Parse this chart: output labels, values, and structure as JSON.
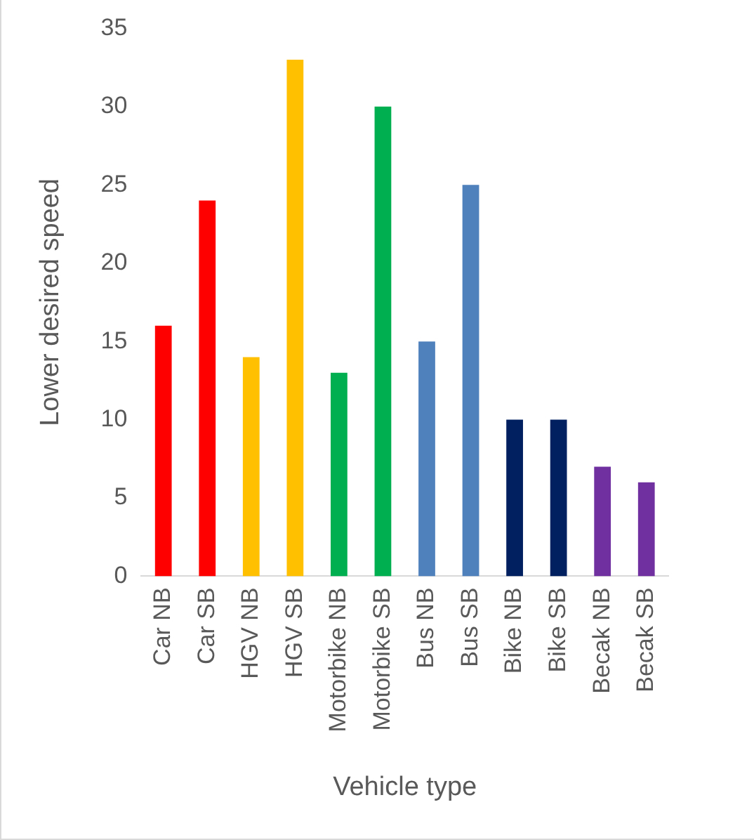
{
  "chart_data": {
    "type": "bar",
    "xlabel": "Vehicle type",
    "ylabel": "Lower desired speed",
    "categories": [
      "Car NB",
      "Car SB",
      "HGV NB",
      "HGV SB",
      "Motorbike NB",
      "Motorbike SB",
      "Bus NB",
      "Bus SB",
      "Bike NB",
      "Bike SB",
      "Becak NB",
      "Becak SB"
    ],
    "values": [
      16,
      24,
      14,
      33,
      13,
      30,
      15,
      25,
      10,
      10,
      7,
      6
    ],
    "colors": [
      "#ff0000",
      "#ff0000",
      "#ffc000",
      "#ffc000",
      "#00b050",
      "#00b050",
      "#4f81bd",
      "#4f81bd",
      "#002060",
      "#002060",
      "#7030a0",
      "#7030a0"
    ],
    "ylim": [
      0,
      35
    ],
    "yticks": [
      0,
      5,
      10,
      15,
      20,
      25,
      30,
      35
    ],
    "grid": false,
    "legend": false
  }
}
